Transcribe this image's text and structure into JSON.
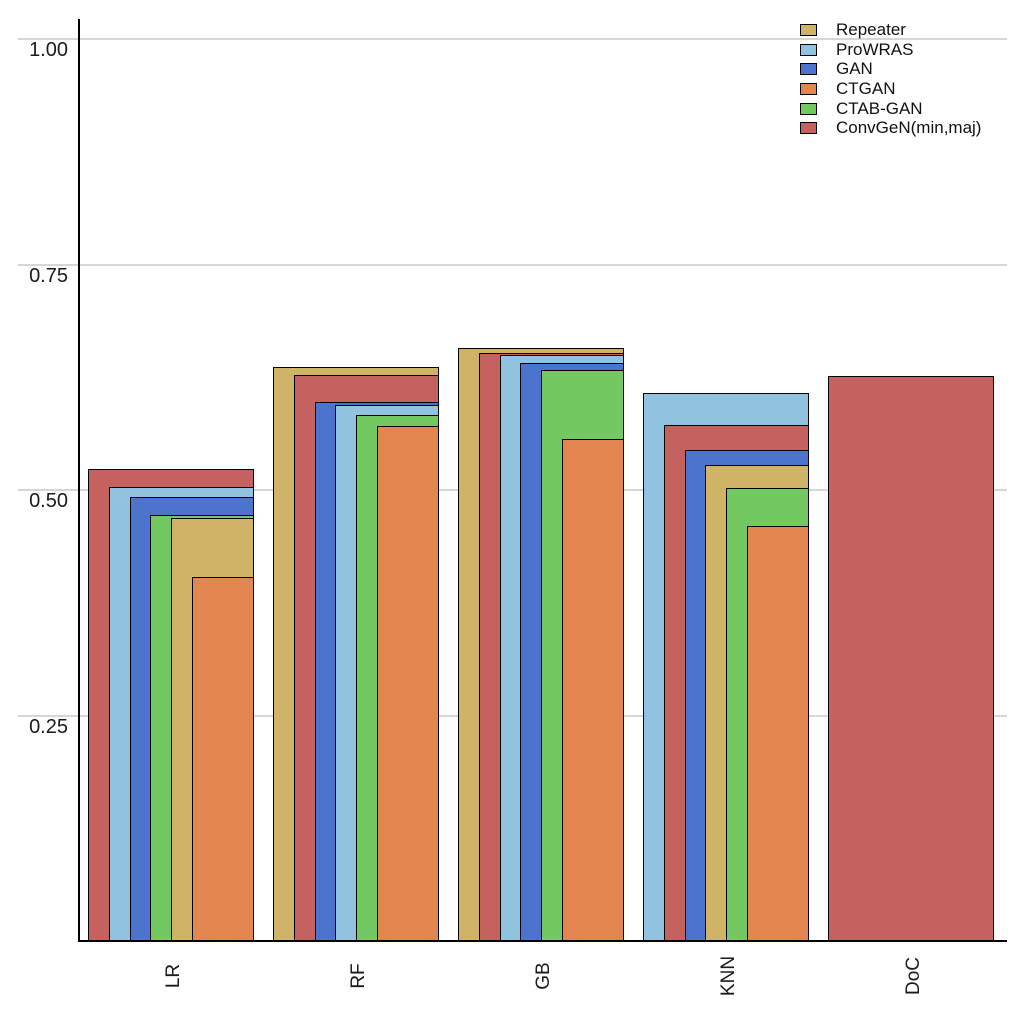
{
  "figure": {
    "background": "#ffffff",
    "axis_color": "#000000",
    "gridline_color": "#d6d6d6",
    "text_color": "#1a1a1a",
    "bar_border_color": "#000000"
  },
  "y_axis": {
    "tick_labels": [
      "1.00",
      "0.75",
      "0.50",
      "0.25"
    ],
    "tick_values": [
      1.0,
      0.75,
      0.5,
      0.25
    ]
  },
  "chart_data": {
    "type": "bar",
    "variant": "overlaid-nested-bars: within each category bars are sorted by value descending, share a common right edge, and narrower (smaller-value) bars are drawn in front with equal left insets",
    "title": "",
    "xlabel": "",
    "ylabel": "",
    "categories": [
      "LR",
      "RF",
      "GB",
      "KNN",
      "DoC"
    ],
    "series": [
      {
        "name": "Repeater",
        "color": "#CFB468",
        "values": [
          0.469,
          0.636,
          0.657,
          0.528,
          null
        ]
      },
      {
        "name": "ProWRAS",
        "color": "#8FC3E0",
        "values": [
          0.503,
          0.594,
          0.65,
          0.608,
          null
        ]
      },
      {
        "name": "GAN",
        "color": "#4C73CE",
        "values": [
          0.492,
          0.598,
          0.641,
          0.544,
          null
        ]
      },
      {
        "name": "CTGAN",
        "color": "#E2854E",
        "values": [
          0.404,
          0.571,
          0.556,
          0.46,
          null
        ]
      },
      {
        "name": "CTAB-GAN",
        "color": "#74C862",
        "values": [
          0.472,
          0.583,
          0.633,
          0.502,
          null
        ]
      },
      {
        "name": "ConvGeN(min,maj)",
        "color": "#C5615E",
        "values": [
          0.523,
          0.627,
          0.652,
          0.572,
          0.626
        ]
      }
    ],
    "ylim": [
      0,
      1.02
    ],
    "yticks": [
      0.25,
      0.5,
      0.75,
      1.0
    ],
    "grid": "horizontal",
    "legend_position": "top-right"
  }
}
